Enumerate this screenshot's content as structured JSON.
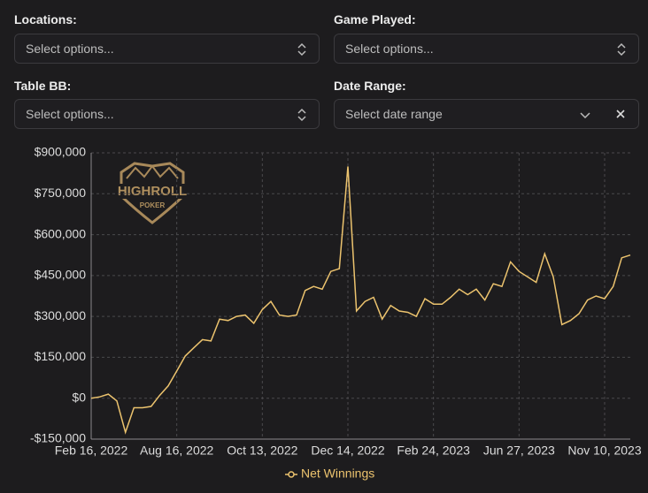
{
  "filters": [
    {
      "label": "Locations:",
      "placeholder": "Select options..."
    },
    {
      "label": "Game Played:",
      "placeholder": "Select options..."
    },
    {
      "label": "Table BB:",
      "placeholder": "Select options..."
    },
    {
      "label": "Date Range:",
      "placeholder": "Select date range"
    }
  ],
  "logo": {
    "title": "HIGHROLL",
    "subtitle": "POKER"
  },
  "chart_data": {
    "type": "line",
    "categories": [
      "Feb 16, 2022",
      null,
      null,
      null,
      null,
      null,
      null,
      null,
      null,
      null,
      "Aug 16, 2022",
      null,
      null,
      null,
      null,
      null,
      null,
      null,
      null,
      null,
      "Oct 13, 2022",
      null,
      null,
      null,
      null,
      null,
      null,
      null,
      null,
      null,
      "Dec 14, 2022",
      null,
      null,
      null,
      null,
      null,
      null,
      null,
      null,
      null,
      "Feb 24, 2023",
      null,
      null,
      null,
      null,
      null,
      null,
      null,
      null,
      null,
      "Jun 27, 2023",
      null,
      null,
      null,
      null,
      null,
      null,
      null,
      null,
      null,
      "Nov 10, 2023",
      null,
      null,
      null
    ],
    "series": [
      {
        "name": "Net Winnings",
        "color": "#ecc36e",
        "values": [
          0,
          5000,
          15000,
          -10000,
          -125000,
          -35000,
          -35000,
          -30000,
          10000,
          45000,
          100000,
          155000,
          185000,
          215000,
          210000,
          290000,
          285000,
          300000,
          305000,
          275000,
          325000,
          355000,
          305000,
          300000,
          305000,
          395000,
          410000,
          400000,
          465000,
          475000,
          850000,
          320000,
          355000,
          370000,
          290000,
          340000,
          320000,
          315000,
          300000,
          365000,
          345000,
          345000,
          370000,
          400000,
          380000,
          400000,
          360000,
          420000,
          410000,
          500000,
          465000,
          445000,
          425000,
          530000,
          445000,
          270000,
          285000,
          310000,
          360000,
          375000,
          365000,
          410000,
          515000,
          525000
        ]
      }
    ],
    "ylim": [
      -150000,
      900000
    ],
    "yticks": [
      {
        "value": -150000,
        "label": "-$150,000"
      },
      {
        "value": 0,
        "label": "$0"
      },
      {
        "value": 150000,
        "label": "$150,000"
      },
      {
        "value": 300000,
        "label": "$300,000"
      },
      {
        "value": 450000,
        "label": "$450,000"
      },
      {
        "value": 600000,
        "label": "$600,000"
      },
      {
        "value": 750000,
        "label": "$750,000"
      },
      {
        "value": 900000,
        "label": "$900,000"
      }
    ],
    "grid": true,
    "legend": "bottom"
  }
}
